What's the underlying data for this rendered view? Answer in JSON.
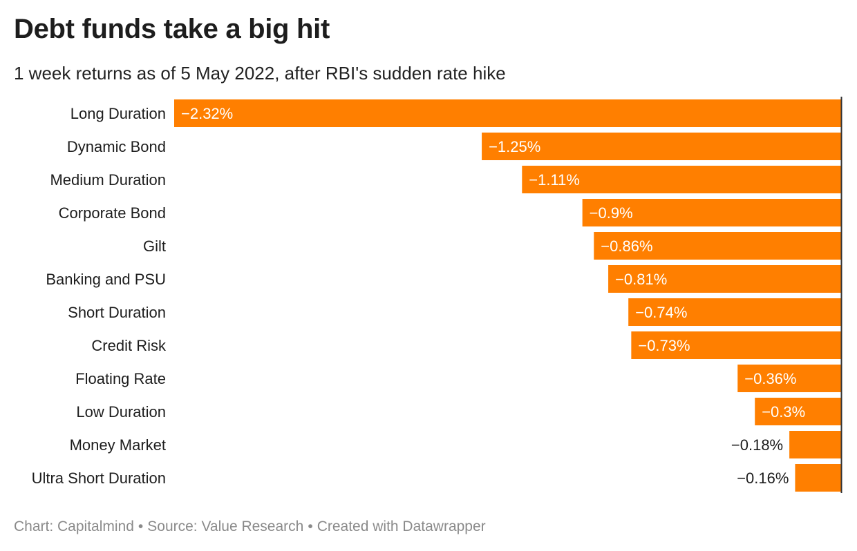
{
  "title": "Debt funds take a big hit",
  "subtitle": "1 week returns as of 5 May 2022, after RBI's sudden rate hike",
  "footer": {
    "chart": "Chart: Capitalmind",
    "source": "Source: Value Research",
    "created": "Created with Datawrapper",
    "separator": "•"
  },
  "chart_data": {
    "type": "bar",
    "orientation": "horizontal",
    "categories": [
      "Long Duration",
      "Dynamic Bond",
      "Medium Duration",
      "Corporate Bond",
      "Gilt",
      "Banking and PSU",
      "Short Duration",
      "Credit Risk",
      "Floating Rate",
      "Low Duration",
      "Money Market",
      "Ultra Short Duration"
    ],
    "values": [
      -2.32,
      -1.25,
      -1.11,
      -0.9,
      -0.86,
      -0.81,
      -0.74,
      -0.73,
      -0.36,
      -0.3,
      -0.18,
      -0.16
    ],
    "labels": [
      "−2.32%",
      "−1.25%",
      "−1.11%",
      "−0.9%",
      "−0.86%",
      "−0.81%",
      "−0.74%",
      "−0.73%",
      "−0.36%",
      "−0.3%",
      "−0.18%",
      "−0.16%"
    ],
    "xlim": [
      -2.32,
      0
    ],
    "bar_color": "#ff7f00",
    "baseline_color": "#333333",
    "title": "Debt funds take a big hit",
    "subtitle": "1 week returns as of 5 May 2022, after RBI's sudden rate hike",
    "xlabel": "",
    "ylabel": "",
    "grid": false,
    "legend": "none"
  }
}
